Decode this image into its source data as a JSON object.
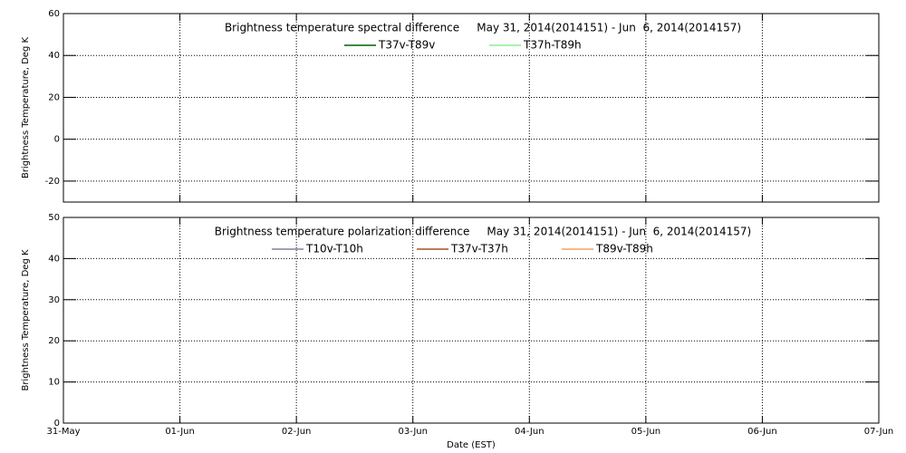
{
  "chart_data": [
    {
      "type": "line",
      "title": "Brightness temperature spectral difference     May 31, 2014(2014151) - Jun  6, 2014(2014157)",
      "y_label": "Brightness Temperature, Deg K",
      "series": [
        {
          "name": "T37v-T89v",
          "color": "#006400",
          "values": [
            null,
            null,
            null,
            null,
            null,
            null,
            null,
            null
          ]
        },
        {
          "name": "T37h-T89h",
          "color": "#90ee90",
          "values": [
            null,
            null,
            null,
            null,
            null,
            null,
            null,
            null
          ]
        }
      ],
      "ylim": [
        -30,
        60
      ],
      "yticks": [
        -20,
        0,
        20,
        40,
        60
      ],
      "grid": true
    },
    {
      "type": "line",
      "title": "Brightness temperature polarization difference     May 31, 2014(2014151) - Jun  6, 2014(2014157)",
      "x_label": "Date (EST)",
      "y_label": "Brightness Temperature, Deg K",
      "x": [
        "31-May",
        "01-Jun",
        "02-Jun",
        "03-Jun",
        "04-Jun",
        "05-Jun",
        "06-Jun",
        "07-Jun"
      ],
      "series": [
        {
          "name": "T10v-T10h",
          "color": "#8080a0",
          "values": [
            null,
            null,
            null,
            null,
            null,
            null,
            null,
            null
          ]
        },
        {
          "name": "T37v-T37h",
          "color": "#a0522d",
          "values": [
            null,
            null,
            null,
            null,
            null,
            null,
            null,
            null
          ]
        },
        {
          "name": "T89v-T89h",
          "color": "#f4a460",
          "values": [
            null,
            null,
            null,
            null,
            null,
            null,
            null,
            null
          ]
        }
      ],
      "ylim": [
        0,
        50
      ],
      "yticks": [
        0,
        10,
        20,
        30,
        40,
        50
      ],
      "grid": true
    }
  ]
}
